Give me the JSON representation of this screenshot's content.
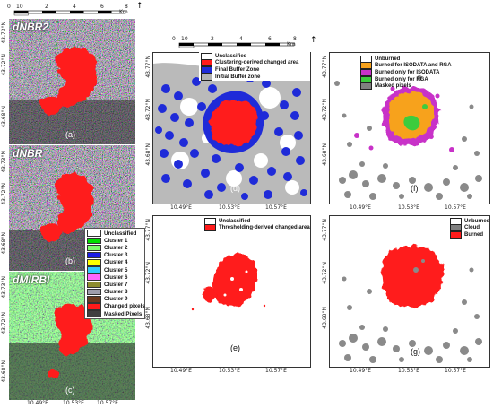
{
  "colors": {
    "burned_red": "#ff1a1a",
    "buffer_blue": "#1f2bd8",
    "gray_mask": "#808080",
    "orange": "#f7a21c",
    "magenta": "#c832c8",
    "green": "#3dcc3d",
    "cluster_colors": [
      "#00e000",
      "#7cff6b",
      "#1a1ae6",
      "#ffff00",
      "#33ccff",
      "#ff66ff",
      "#8c8c2e",
      "#9e9ead",
      "#6b3a1f"
    ]
  },
  "left_panels": [
    {
      "title": "dNBR2",
      "letter": "(a)"
    },
    {
      "title": "dNBR",
      "letter": "(b)"
    },
    {
      "title": "dMIRBI",
      "letter": "(c)"
    }
  ],
  "left_scalebar": {
    "zero": "0",
    "ticks": [
      "10",
      "2",
      "4",
      "6",
      "8"
    ],
    "unit": "Km"
  },
  "left_axes": {
    "lat_top": "43.73°N",
    "lat_mid": "43.72°N",
    "lat_bottom": "43.68°N",
    "lon_ticks": [
      "10.49°E",
      "10.53°E",
      "10.57°E"
    ]
  },
  "cluster_legend": [
    {
      "label": "Unclassified",
      "color": "#ffffff"
    },
    {
      "label": "Cluster 1",
      "color": "#00e000"
    },
    {
      "label": "Cluster 2",
      "color": "#7cff6b"
    },
    {
      "label": "Cluster 3",
      "color": "#1a1ae6"
    },
    {
      "label": "Cluster 4",
      "color": "#ffff00"
    },
    {
      "label": "Cluster 5",
      "color": "#33ccff"
    },
    {
      "label": "Cluster 6",
      "color": "#ff66ff"
    },
    {
      "label": "Cluster 7",
      "color": "#8c8c2e"
    },
    {
      "label": "Cluster 8",
      "color": "#9e9ead"
    },
    {
      "label": "Cluster 9",
      "color": "#6b3a1f"
    },
    {
      "label": "Changed pixels",
      "color": "#ff1a1a"
    },
    {
      "label": "Masked Pixels",
      "color": "#404040"
    }
  ],
  "right_scalebar": {
    "zero": "0",
    "ticks": [
      "10",
      "2",
      "4",
      "6",
      "8"
    ],
    "unit": "Km"
  },
  "panel_d": {
    "letter": "(d)",
    "legend": [
      {
        "label": "Unclassified",
        "color": "#ffffff"
      },
      {
        "label": "Clustering-derived changed area",
        "color": "#ff1a1a"
      },
      {
        "label": "Final Buffer Zone",
        "color": "#1f2bd8"
      },
      {
        "label": "Initial Buffer zone",
        "color": "#b3b3b3"
      }
    ]
  },
  "panel_f": {
    "letter": "(f)",
    "legend": [
      {
        "label": "Unburned",
        "color": "#ffffff"
      },
      {
        "label": "Burned for ISODATA and RGA",
        "color": "#f7a21c"
      },
      {
        "label": "Burned only for ISODATA",
        "color": "#c832c8"
      },
      {
        "label": "Burned only for RGA",
        "color": "#3dcc3d"
      },
      {
        "label": "Masked pixels",
        "color": "#808080"
      }
    ]
  },
  "panel_e": {
    "letter": "(e)",
    "legend": [
      {
        "label": "Unclassified",
        "color": "#ffffff"
      },
      {
        "label": "Thresholding-derived changed area",
        "color": "#ff1a1a"
      }
    ]
  },
  "panel_g": {
    "letter": "(g)",
    "legend": [
      {
        "label": "Unburned",
        "color": "#ffffff"
      },
      {
        "label": "Cloud",
        "color": "#808080"
      },
      {
        "label": "Burned",
        "color": "#ff1a1a"
      }
    ]
  },
  "right_axes": {
    "lat_top": "43.77°N",
    "lat_mid": "43.72°N",
    "lat_bottom": "43.68°N",
    "lon_ticks": [
      "10.49°E",
      "10.53°E",
      "10.57°E"
    ]
  }
}
